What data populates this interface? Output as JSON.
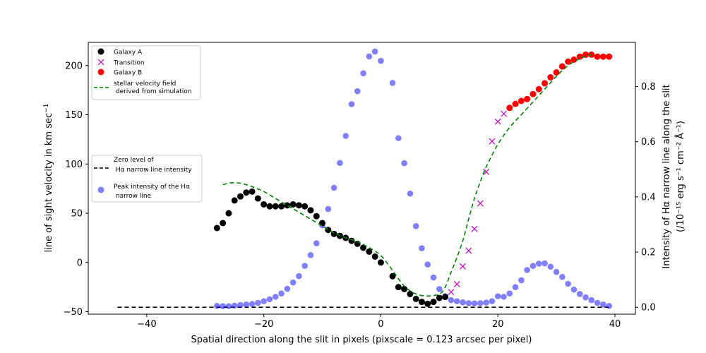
{
  "chart_data": {
    "type": "scatter",
    "xlabel": "Spatial direction along the slit in pixels (pixscale = 0.123 arcsec per pixel)",
    "ylabel_left": "line of sight velocity in km sec",
    "ylabel_left_sup": "−1",
    "ylabel_right_line1": "Intensity of Hα narrow line along the slit",
    "ylabel_right_line2": "(/10⁻¹⁵ erg s⁻¹ cm⁻² Å⁻¹)",
    "xlim": [
      -50,
      43.5
    ],
    "ylim_left": [
      -52.5,
      223.5
    ],
    "ylim_right": [
      -0.025,
      0.96
    ],
    "x_ticks": [
      -40,
      -20,
      0,
      20,
      40
    ],
    "y_ticks_left": [
      -50,
      0,
      50,
      100,
      150,
      200
    ],
    "y_ticks_right": [
      0.0,
      0.2,
      0.4,
      0.6,
      0.8
    ],
    "y_tick_labels_right": [
      "0.0",
      "0.2",
      "0.4",
      "0.6",
      "0.8"
    ],
    "colors": {
      "galaxy_a": "#000000",
      "transition": "#bf00bf",
      "galaxy_b": "#ff0000",
      "stellar": "#008000",
      "zero_level": "#000000",
      "intensity": "#0000ff"
    },
    "legend1": {
      "entries": [
        {
          "label": "Galaxy A",
          "marker": "circle",
          "color": "#000000"
        },
        {
          "label": "Transition",
          "marker": "x",
          "color": "#bf00bf"
        },
        {
          "label": "Galaxy B",
          "marker": "circle",
          "color": "#ff0000"
        },
        {
          "label": "stellar velocity field",
          "label2": " derived from simulation",
          "marker": "dashed",
          "color": "#008000"
        }
      ]
    },
    "legend2": {
      "entries": [
        {
          "label": "Zero level of",
          "label2": " Hα narrow line intensity",
          "marker": "dashed",
          "color": "#000000"
        },
        {
          "label": "Peak intensity of the Hα",
          "label2": " narrow line",
          "marker": "circle",
          "color": "#0000ff"
        }
      ]
    },
    "series": [
      {
        "name": "Galaxy A",
        "axis": "left",
        "x": [
          -28,
          -27,
          -26,
          -25,
          -24,
          -23,
          -22,
          -21,
          -20,
          -19,
          -18,
          -17,
          -16,
          -15,
          -14,
          -13,
          -12,
          -11,
          -10,
          -9,
          -8,
          -7,
          -6,
          -5,
          -4,
          -3,
          -2,
          -1,
          0,
          2,
          3,
          4,
          5,
          6,
          7,
          8,
          9,
          10,
          11
        ],
        "y": [
          35,
          40,
          50,
          63,
          67,
          71,
          72,
          65,
          59,
          57,
          57,
          57,
          58,
          59,
          58,
          57,
          53,
          47,
          40,
          33,
          29,
          27,
          25,
          22,
          19,
          15,
          11,
          6,
          0,
          -14,
          -25,
          -27,
          -32,
          -37,
          -40,
          -42,
          -40,
          -36,
          -35
        ]
      },
      {
        "name": "Transition",
        "axis": "left",
        "x": [
          12,
          13,
          14,
          15,
          16,
          17,
          18,
          19,
          20,
          21
        ],
        "y": [
          -30,
          -22,
          -4,
          12,
          34,
          60,
          92,
          123,
          143,
          151
        ]
      },
      {
        "name": "Galaxy B",
        "axis": "left",
        "x": [
          22,
          23,
          24,
          25,
          26,
          27,
          28,
          29,
          30,
          31,
          32,
          33,
          34,
          35,
          36,
          37,
          38,
          39
        ],
        "y": [
          157,
          161,
          164,
          166,
          171,
          176,
          182,
          188,
          193,
          199,
          204,
          206,
          209,
          211,
          211,
          209,
          209,
          209
        ]
      },
      {
        "name": "stellar velocity field derived from simulation",
        "axis": "left",
        "x": [
          -27,
          -26,
          -25,
          -24,
          -23,
          -22,
          -20,
          -18,
          -16,
          -14,
          -12,
          -10,
          -8,
          -6,
          -4,
          -2,
          0,
          2,
          4,
          6,
          8,
          10,
          11,
          12,
          13,
          14,
          15,
          16,
          17,
          18,
          20,
          22,
          24,
          26,
          28,
          30,
          32,
          34,
          36
        ],
        "y": [
          79,
          80.5,
          81,
          80.5,
          79,
          77,
          72,
          65,
          58,
          51,
          44,
          37,
          30,
          25,
          21,
          15,
          7,
          -8,
          -24,
          -32,
          -34,
          -32,
          -25,
          -10,
          5,
          22,
          44,
          65,
          82,
          97,
          120,
          137,
          150,
          163,
          176,
          189,
          200,
          207,
          211
        ]
      },
      {
        "name": "Zero level of Ha narrow line intensity",
        "axis": "right",
        "x": [
          -45,
          39
        ],
        "y": [
          0,
          0
        ]
      },
      {
        "name": "Peak intensity of the Ha narrow line",
        "axis": "right",
        "x": [
          -28,
          -27,
          -26,
          -25,
          -24,
          -23,
          -22,
          -21,
          -20,
          -19,
          -18,
          -17,
          -16,
          -15,
          -14,
          -13,
          -12,
          -11,
          -10,
          -9,
          -8,
          -7,
          -6,
          -5,
          -4,
          -3,
          -2,
          -1,
          0,
          2,
          3,
          4,
          5,
          6,
          7,
          8,
          9,
          10,
          11,
          12,
          13,
          14,
          15,
          16,
          17,
          18,
          19,
          20,
          21,
          22,
          23,
          24,
          25,
          26,
          27,
          28,
          29,
          30,
          31,
          32,
          33,
          34,
          35,
          36,
          37,
          38,
          39
        ],
        "y": [
          0.005,
          0.004,
          0.004,
          0.006,
          0.008,
          0.01,
          0.012,
          0.016,
          0.022,
          0.029,
          0.038,
          0.05,
          0.067,
          0.09,
          0.113,
          0.15,
          0.189,
          0.232,
          0.297,
          0.356,
          0.433,
          0.523,
          0.621,
          0.736,
          0.783,
          0.848,
          0.909,
          0.927,
          0.893,
          0.813,
          0.613,
          0.522,
          0.412,
          0.294,
          0.214,
          0.155,
          0.108,
          0.066,
          0.04,
          0.026,
          0.022,
          0.018,
          0.015,
          0.014,
          0.015,
          0.017,
          0.022,
          0.04,
          0.038,
          0.05,
          0.073,
          0.098,
          0.135,
          0.15,
          0.158,
          0.159,
          0.147,
          0.128,
          0.11,
          0.085,
          0.064,
          0.048,
          0.036,
          0.026,
          0.016,
          0.01,
          0.005
        ]
      }
    ]
  }
}
